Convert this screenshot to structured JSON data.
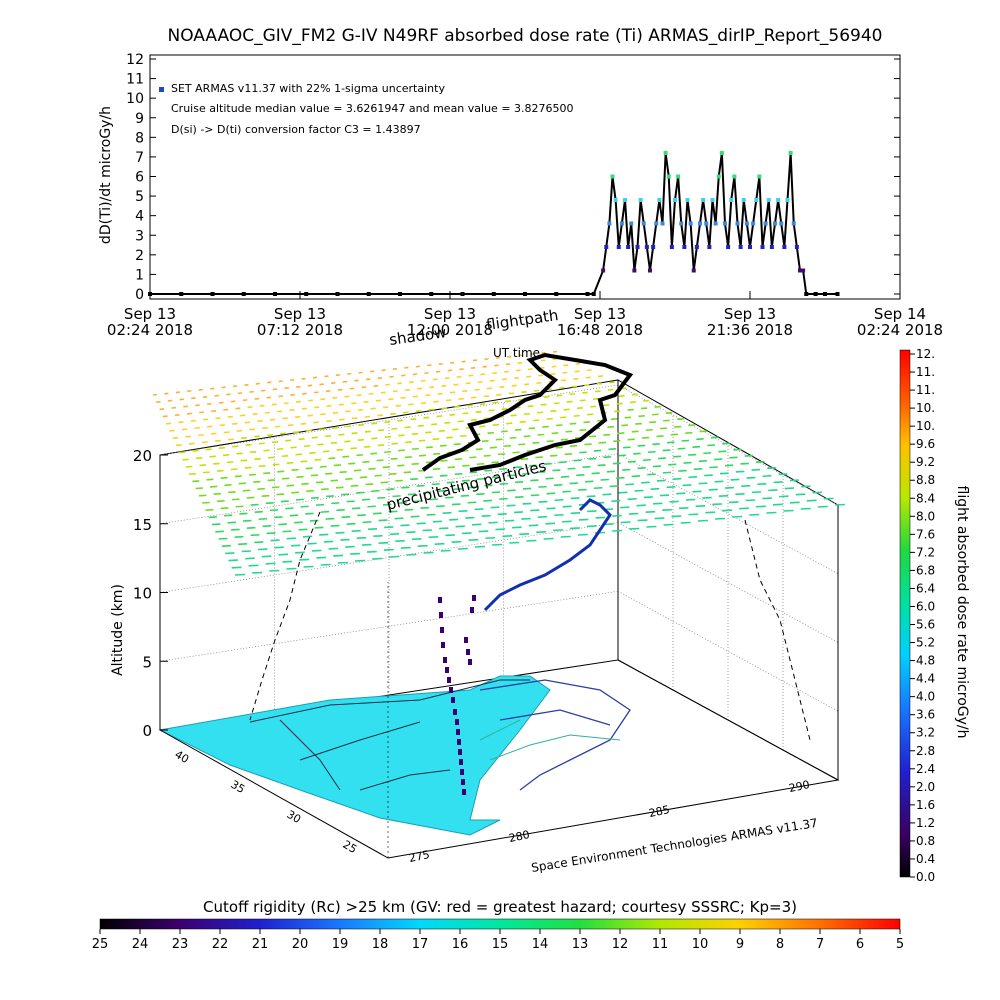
{
  "title": "NOAAAOC_GIV_FM2 G-IV    N49RF  absorbed dose rate (Ti) ARMAS_dirIP_Report_56940",
  "chart_data": [
    {
      "type": "scatter",
      "ylabel": "dD(Ti)/dt microGy/h",
      "xlabel": "",
      "ylim": [
        0,
        12
      ],
      "yticks": [
        "0",
        "1",
        "2",
        "3",
        "4",
        "5",
        "6",
        "7",
        "8",
        "9",
        "10",
        "11",
        "12"
      ],
      "xticks": [
        {
          "line1": "Sep 13",
          "line2": "02:24 2018"
        },
        {
          "line1": "Sep 13",
          "line2": "07:12 2018"
        },
        {
          "line1": "Sep 13",
          "line2": "12:00 2018"
        },
        {
          "line1": "Sep 13",
          "line2": "16:48 2018"
        },
        {
          "line1": "Sep 13",
          "line2": "21:36 2018"
        },
        {
          "line1": "Sep 14",
          "line2": "02:24 2018"
        }
      ],
      "annotations": [
        "SET ARMAS v11.37 with 22% 1-sigma uncertainty",
        "Cruise altitude median value = 3.6261947 and mean value = 3.8276500",
        "D(si) -> D(ti) conversion factor C3 = 1.43897"
      ],
      "legend_marker_color": "#2048c8",
      "series": [
        {
          "x_hours": [
            0,
            1,
            2,
            3,
            4,
            5,
            6,
            7,
            8,
            9,
            10,
            11,
            12,
            13,
            14,
            14.2,
            14.5,
            14.6,
            14.7,
            14.8,
            14.9,
            15.0,
            15.1,
            15.2,
            15.3,
            15.4,
            15.5,
            15.6,
            15.7,
            15.8,
            15.9,
            16.0,
            16.1,
            16.2,
            16.3,
            16.4,
            16.5,
            16.6,
            16.7,
            16.8,
            16.9,
            17.0,
            17.1,
            17.2,
            17.3,
            17.4,
            17.5,
            17.6,
            17.7,
            17.8,
            17.9,
            18.0,
            18.1,
            18.2,
            18.3,
            18.4,
            18.5,
            18.6,
            18.7,
            18.8,
            18.9,
            19.0,
            19.1,
            19.2,
            19.3,
            19.4,
            19.5,
            19.6,
            19.7,
            19.8,
            19.9,
            20.0,
            20.1,
            20.2,
            20.3,
            20.4,
            20.5,
            20.6,
            20.7,
            20.8,
            20.9,
            21.0,
            21.3,
            21.6,
            22.0
          ],
          "y": [
            0,
            0,
            0,
            0,
            0,
            0,
            0,
            0,
            0,
            0,
            0,
            0,
            0,
            0,
            0,
            0,
            1.2,
            2.4,
            3.6,
            6.0,
            4.8,
            2.4,
            3.6,
            4.8,
            2.4,
            3.6,
            1.2,
            2.4,
            4.8,
            3.6,
            2.4,
            1.2,
            2.4,
            3.6,
            4.8,
            3.6,
            7.2,
            6.0,
            2.4,
            4.8,
            6.0,
            3.6,
            2.4,
            4.8,
            3.6,
            1.2,
            2.4,
            3.6,
            4.8,
            3.6,
            2.4,
            4.8,
            3.6,
            6.0,
            7.2,
            3.6,
            2.4,
            4.8,
            6.0,
            3.6,
            2.4,
            4.8,
            3.6,
            2.4,
            3.6,
            4.8,
            6.0,
            2.4,
            3.6,
            4.8,
            2.4,
            3.6,
            4.8,
            3.6,
            2.4,
            4.8,
            7.2,
            3.6,
            2.4,
            1.2,
            1.2,
            0,
            0,
            0,
            0
          ]
        }
      ]
    },
    {
      "type": "scatter",
      "title": "",
      "ylabel": "Altitude (km)",
      "zticks": [
        "0",
        "5",
        "10",
        "15",
        "20"
      ],
      "lat_ticks": [
        "40",
        "35",
        "30",
        "25"
      ],
      "lon_ticks": [
        "275",
        "280",
        "285",
        "290"
      ],
      "labels": [
        "shadow",
        "flightpath",
        "UT time",
        "precipitating particles"
      ],
      "credit": "Space Environment Technologies ARMAS v11.37",
      "colorbar": {
        "label": "flight absorbed dose rate microGy/h",
        "ticks": [
          "12.",
          "11.",
          "11.",
          "10.",
          "10.",
          "9.6",
          "9.2",
          "8.8",
          "8.4",
          "8.0",
          "7.6",
          "7.2",
          "6.8",
          "6.4",
          "6.0",
          "5.6",
          "5.2",
          "4.8",
          "4.4",
          "4.0",
          "3.6",
          "3.2",
          "2.8",
          "2.4",
          "2.0",
          "1.6",
          "1.2",
          "0.8",
          "0.4",
          "0.0"
        ]
      }
    },
    {
      "type": "heatmap",
      "title": "Cutoff rigidity (Rc) >25 km (GV: red = greatest hazard; courtesy SSSRC; Kp=3)",
      "ticks": [
        "25",
        "24",
        "23",
        "22",
        "21",
        "20",
        "19",
        "18",
        "17",
        "16",
        "15",
        "14",
        "13",
        "12",
        "11",
        "10",
        "9",
        "8",
        "7",
        "6",
        "5"
      ]
    }
  ]
}
